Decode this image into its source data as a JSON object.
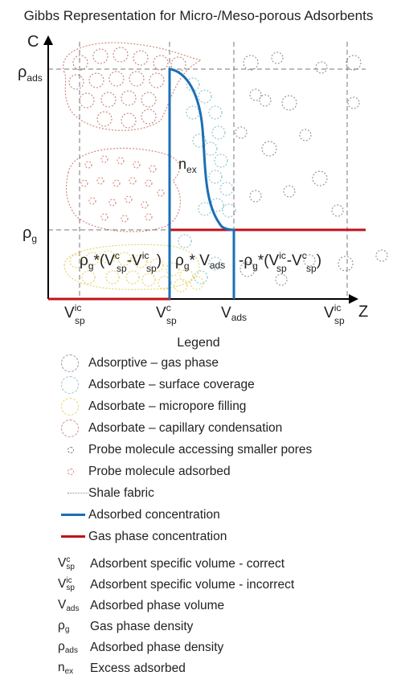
{
  "title": "Gibbs Representation for Micro-/Meso-porous Adsorbents",
  "axes": {
    "y_label": "C",
    "x_label": "Z",
    "y_ticks": [
      {
        "base": "ρ",
        "sub": "ads"
      },
      {
        "base": "ρ",
        "sub": "g"
      }
    ],
    "x_ticks": [
      {
        "base": "V",
        "sub": "sp",
        "sup": "ic"
      },
      {
        "base": "V",
        "sub": "sp",
        "sup": "c"
      },
      {
        "base": "V",
        "sub": "ads",
        "sup": ""
      },
      {
        "base": "V",
        "sub": "sp",
        "sup": "ic"
      }
    ]
  },
  "annotations": {
    "n_ex": {
      "base": "n",
      "sub": "ex"
    },
    "left_region": "ρg*(Vspc-Vspic)",
    "mid_region": "ρg* Vads",
    "right_region": "-ρg*(Vspic-Vspc)"
  },
  "colors": {
    "adsorbed": "#1a6fb5",
    "gas": "#c0121a",
    "gas_phase_circle": "#9a9a9a",
    "surface_circle": "#8fc6cf",
    "micropore_circle": "#e8d36a",
    "capillary_circle": "#c98d86",
    "probe_small": "#7f7f7f",
    "probe_adsorbed": "#d58a80"
  },
  "legend": {
    "title": "Legend",
    "items": [
      {
        "icon": "gas-phase-circle-icon",
        "text": "Adsorptive – gas phase"
      },
      {
        "icon": "surface-coverage-circle-icon",
        "text": "Adsorbate – surface coverage"
      },
      {
        "icon": "micropore-filling-circle-icon",
        "text": "Adsorbate – micropore filling"
      },
      {
        "icon": "capillary-condensation-circle-icon",
        "text": "Adsorbate – capillary condensation"
      },
      {
        "icon": "probe-small-pore-icon",
        "text": "Probe molecule accessing smaller pores"
      },
      {
        "icon": "probe-adsorbed-icon",
        "text": "Probe molecule adsorbed"
      },
      {
        "icon": "shale-fabric-line-icon",
        "text": "Shale fabric"
      },
      {
        "icon": "adsorbed-concentration-line-icon",
        "text": "Adsorbed concentration"
      },
      {
        "icon": "gas-concentration-line-icon",
        "text": "Gas phase concentration"
      }
    ],
    "symbols": [
      {
        "base": "V",
        "sub": "sp",
        "sup": "c",
        "text": "Adsorbent specific volume - correct"
      },
      {
        "base": "V",
        "sub": "sp",
        "sup": "ic",
        "text": "Adsorbent specific volume - incorrect"
      },
      {
        "base": "V",
        "sub": "ads",
        "sup": "",
        "text": "Adsorbed phase volume"
      },
      {
        "base": "ρ",
        "sub": "g",
        "sup": "",
        "text": "Gas phase density"
      },
      {
        "base": "ρ",
        "sub": "ads",
        "sup": "",
        "text": "Adsorbed phase density"
      },
      {
        "base": "n",
        "sub": "ex",
        "sup": "",
        "text": "Excess adsorbed"
      }
    ]
  }
}
